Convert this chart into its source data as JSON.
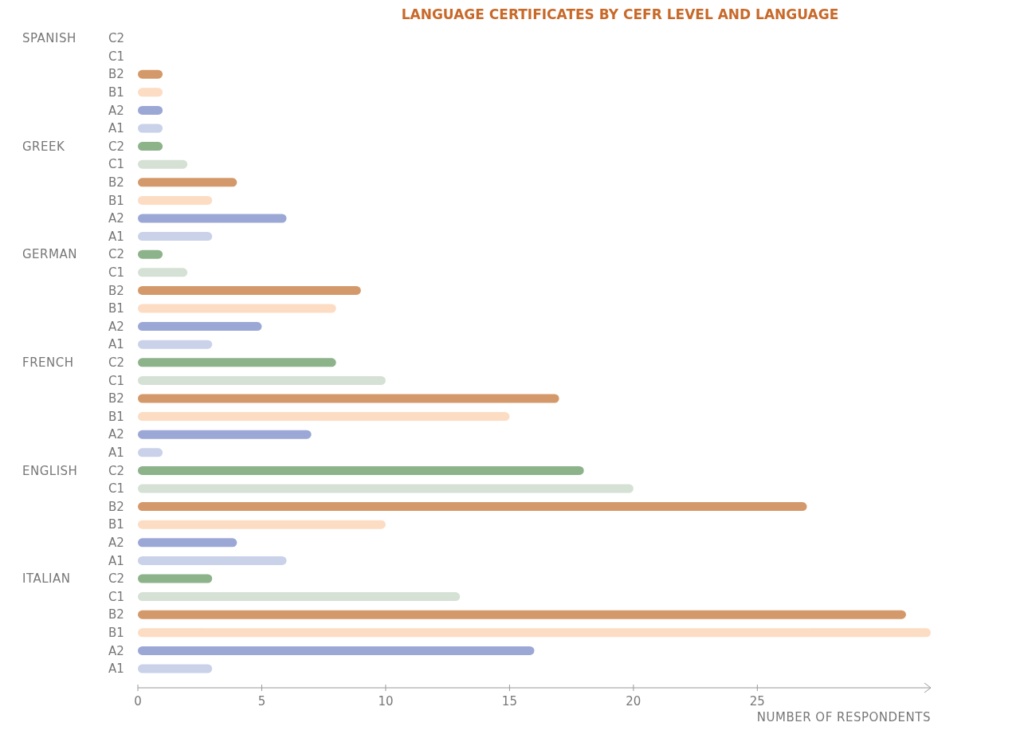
{
  "chart_data": {
    "type": "bar",
    "orientation": "horizontal",
    "title": "LANGUAGE CERTIFICATES BY CEFR LEVEL AND LANGUAGE",
    "xlabel": "NUMBER OF RESPONDENTS",
    "annotations": [
      "SPANISH",
      "GREEK",
      "GERMAN",
      "FRENCH",
      "ENGLISH",
      "ITALIAN"
    ],
    "categories": [
      "C2",
      "C1",
      "B2",
      "B1",
      "A2",
      "A1",
      "C2",
      "C1",
      "B2",
      "B1",
      "A2",
      "A1",
      "C2",
      "C1",
      "B2",
      "B1",
      "A2",
      "A1",
      "C2",
      "C1",
      "B2",
      "B1",
      "A2",
      "A1",
      "C2",
      "C1",
      "B2",
      "B1",
      "A2",
      "A1",
      "C2",
      "C1",
      "B2",
      "B1",
      "A2",
      "A1"
    ],
    "values": [
      0,
      0,
      1,
      1,
      1,
      1,
      1,
      2,
      4,
      3,
      6,
      3,
      1,
      2,
      9,
      8,
      5,
      3,
      8,
      10,
      17,
      15,
      7,
      1,
      18,
      20,
      27,
      10,
      4,
      6,
      3,
      13,
      31,
      32,
      16,
      3
    ],
    "colors": [
      "#8db38a",
      "#d5e1d5",
      "#d4996a",
      "#fddcc4",
      "#9ba8d6",
      "#cad2ea",
      "#8db38a",
      "#d5e1d5",
      "#d4996a",
      "#fddcc4",
      "#9ba8d6",
      "#cad2ea",
      "#8db38a",
      "#d5e1d5",
      "#d4996a",
      "#fddcc4",
      "#9ba8d6",
      "#cad2ea",
      "#8db38a",
      "#d5e1d5",
      "#d4996a",
      "#fddcc4",
      "#9ba8d6",
      "#cad2ea",
      "#8db38a",
      "#d5e1d5",
      "#d4996a",
      "#fddcc4",
      "#9ba8d6",
      "#cad2ea",
      "#8db38a",
      "#d5e1d5",
      "#d4996a",
      "#fddcc4",
      "#9ba8d6",
      "#cad2ea"
    ],
    "xlim": [
      0,
      32
    ],
    "xticks": [
      0,
      5,
      10,
      15,
      20,
      25
    ],
    "grid": false
  }
}
